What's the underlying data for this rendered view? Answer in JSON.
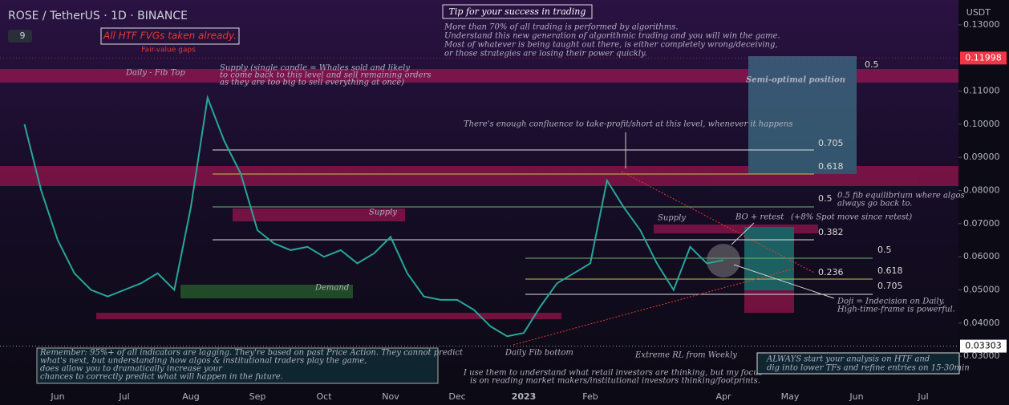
{
  "chart_data": {
    "type": "line",
    "title": "ROSE / TetherUS · 1D · BINANCE",
    "currency": "USDT",
    "indicator": "9",
    "categories": [
      null,
      null,
      "Jun",
      null,
      null,
      null,
      "Jul",
      null,
      null,
      null,
      "Aug",
      null,
      null,
      null,
      "Sep",
      null,
      null,
      null,
      "Oct",
      null,
      null,
      null,
      "Nov",
      null,
      null,
      null,
      "Dec",
      null,
      null,
      null,
      "2023",
      null,
      null,
      null,
      "Feb",
      null,
      null,
      null,
      null,
      null,
      null,
      null,
      "Apr",
      null,
      null,
      null,
      "May",
      null,
      null,
      null,
      "Jun",
      null,
      null,
      null,
      "Jul",
      null
    ],
    "values": [
      0.1,
      0.08,
      0.065,
      0.055,
      0.05,
      0.048,
      0.05,
      0.052,
      0.055,
      0.05,
      0.075,
      0.108,
      0.095,
      0.085,
      0.068,
      0.064,
      0.062,
      0.063,
      0.06,
      0.062,
      0.058,
      0.061,
      0.066,
      0.055,
      0.048,
      0.047,
      0.047,
      0.044,
      0.039,
      0.036,
      0.037,
      0.045,
      0.052,
      0.055,
      0.058,
      0.083,
      0.075,
      0.068,
      0.058,
      0.05,
      0.063,
      0.058,
      0.059,
      null,
      null,
      null,
      null,
      null,
      null,
      null,
      null,
      null,
      null,
      null,
      null,
      null
    ],
    "color": "#26a69a",
    "ylim": [
      0.0201,
      0.1375
    ],
    "yticks": [
      {
        "value": 0.13,
        "label": "0.13000"
      },
      {
        "value": 0.11,
        "label": "0.11000"
      },
      {
        "value": 0.1,
        "label": "0.10000"
      },
      {
        "value": 0.09,
        "label": "0.09000"
      },
      {
        "value": 0.08,
        "label": "0.08000"
      },
      {
        "value": 0.07,
        "label": "0.07000"
      },
      {
        "value": 0.06,
        "label": "0.06000"
      },
      {
        "value": 0.05,
        "label": "0.05000"
      },
      {
        "value": 0.04,
        "label": "0.04000"
      },
      {
        "value": 0.03,
        "label": "0.03000"
      }
    ],
    "price_tags": [
      {
        "value": 0.11998,
        "color": "#f23645"
      },
      {
        "value": 0.03303,
        "color": "#ffffff"
      }
    ]
  },
  "annotations": {
    "fvg": "All HTF FVGs taken already.",
    "fair_value_gaps": "Fair-value gaps",
    "tip_title": "Tip for your success in trading",
    "tip_lines": [
      "More than 70% of all trading is performed by algorithms.",
      "Understand this new generation of algorithmic trading and you will win the game.",
      "Most of whatever is being taught out there, is either completely wrong/deceiving,",
      "or those strategies are losing their power quickly."
    ],
    "fib_top": "Daily - Fib Top",
    "supply_note": [
      "Supply (single candle = Whales sold and likely",
      "to come back to this level and sell remaining orders",
      "as they are too big to sell everything at once)"
    ],
    "confluence": "There's enough confluence to take-profit/short at this level, whenever it happens",
    "semi_optimal": "Semi-optimal position",
    "fib_levels_top": [
      "0.5",
      "0.705",
      "0.618",
      "0.5",
      "0.382"
    ],
    "equilibrium": [
      "0.5 fib equilibrium where algos",
      "always go back to."
    ],
    "supply": "Supply",
    "supply_2": "Supply",
    "demand": "Demand",
    "bo_retest": "BO + retest",
    "spot_move": "(+8% Spot move since retest)",
    "fib_levels_low": [
      "0.5",
      "0.618",
      "0.236",
      "0.705"
    ],
    "doji": [
      "Doji = Indecision on Daily.",
      "High-time-frame is powerful."
    ],
    "fib_bottom": "Daily Fib bottom",
    "extreme_rl": "Extreme RL from Weekly",
    "remember": [
      "Remember: 95%+ of all indicators are lagging. They're based on past Price Action. They cannot predict",
      "what's next, but understanding how algos & institutional traders play the game,",
      "does allow you to dramatically increase your",
      "chances to correctly predict what will happen in the future."
    ],
    "retail": [
      "I use them to understand what retail investors are thinking, but my focus",
      "is on reading market makers/institutional investors thinking/footprints."
    ],
    "always": [
      "ALWAYS start your analysis on HTF and",
      "dig into lower TFs and refine entries on 15-30min"
    ]
  }
}
